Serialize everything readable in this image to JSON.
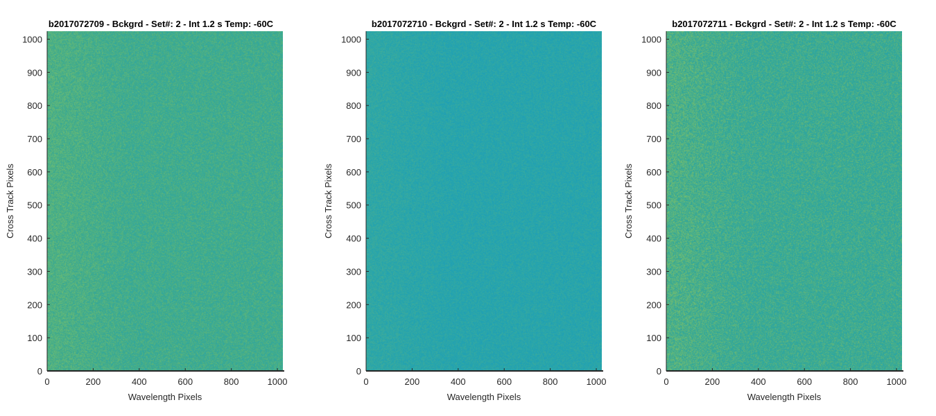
{
  "chart_data": [
    {
      "type": "heatmap",
      "title": "b2017072709 - Bckgrd - Set#: 2 - Int 1.2 s Temp: -60C",
      "xlabel": "Wavelength Pixels",
      "ylabel": "Cross Track Pixels",
      "xlim": [
        0,
        1024
      ],
      "ylim": [
        0,
        1024
      ],
      "xticks": [
        0,
        200,
        400,
        600,
        800,
        1000
      ],
      "yticks": [
        0,
        100,
        200,
        300,
        400,
        500,
        600,
        700,
        800,
        900,
        1000
      ],
      "colormap": "parula",
      "base_color": "#3faa8c",
      "description_colors": [
        "#2ea7a4",
        "#3faa8c",
        "#6fbd72"
      ],
      "grid": false
    },
    {
      "type": "heatmap",
      "title": "b2017072710 - Bckgrd - Set#: 2 - Int 1.2 s Temp: -60C",
      "xlabel": "Wavelength Pixels",
      "ylabel": "Cross Track Pixels",
      "xlim": [
        0,
        1024
      ],
      "ylim": [
        0,
        1024
      ],
      "xticks": [
        0,
        200,
        400,
        600,
        800,
        1000
      ],
      "yticks": [
        0,
        100,
        200,
        300,
        400,
        500,
        600,
        700,
        800,
        900,
        1000
      ],
      "colormap": "parula",
      "base_color": "#27a5ac",
      "description_colors": [
        "#1f9fb6",
        "#27a5ac",
        "#43ad97"
      ],
      "grid": false
    },
    {
      "type": "heatmap",
      "title": "b2017072711 - Bckgrd - Set#: 2 - Int 1.2 s Temp: -60C",
      "xlabel": "Wavelength Pixels",
      "ylabel": "Cross Track Pixels",
      "xlim": [
        0,
        1024
      ],
      "ylim": [
        0,
        1024
      ],
      "xticks": [
        0,
        200,
        400,
        600,
        800,
        1000
      ],
      "yticks": [
        0,
        100,
        200,
        300,
        400,
        500,
        600,
        700,
        800,
        900,
        1000
      ],
      "colormap": "parula",
      "base_color": "#37a895",
      "description_colors": [
        "#2aa6a6",
        "#37a895",
        "#7cc06a"
      ],
      "grid": false
    }
  ]
}
